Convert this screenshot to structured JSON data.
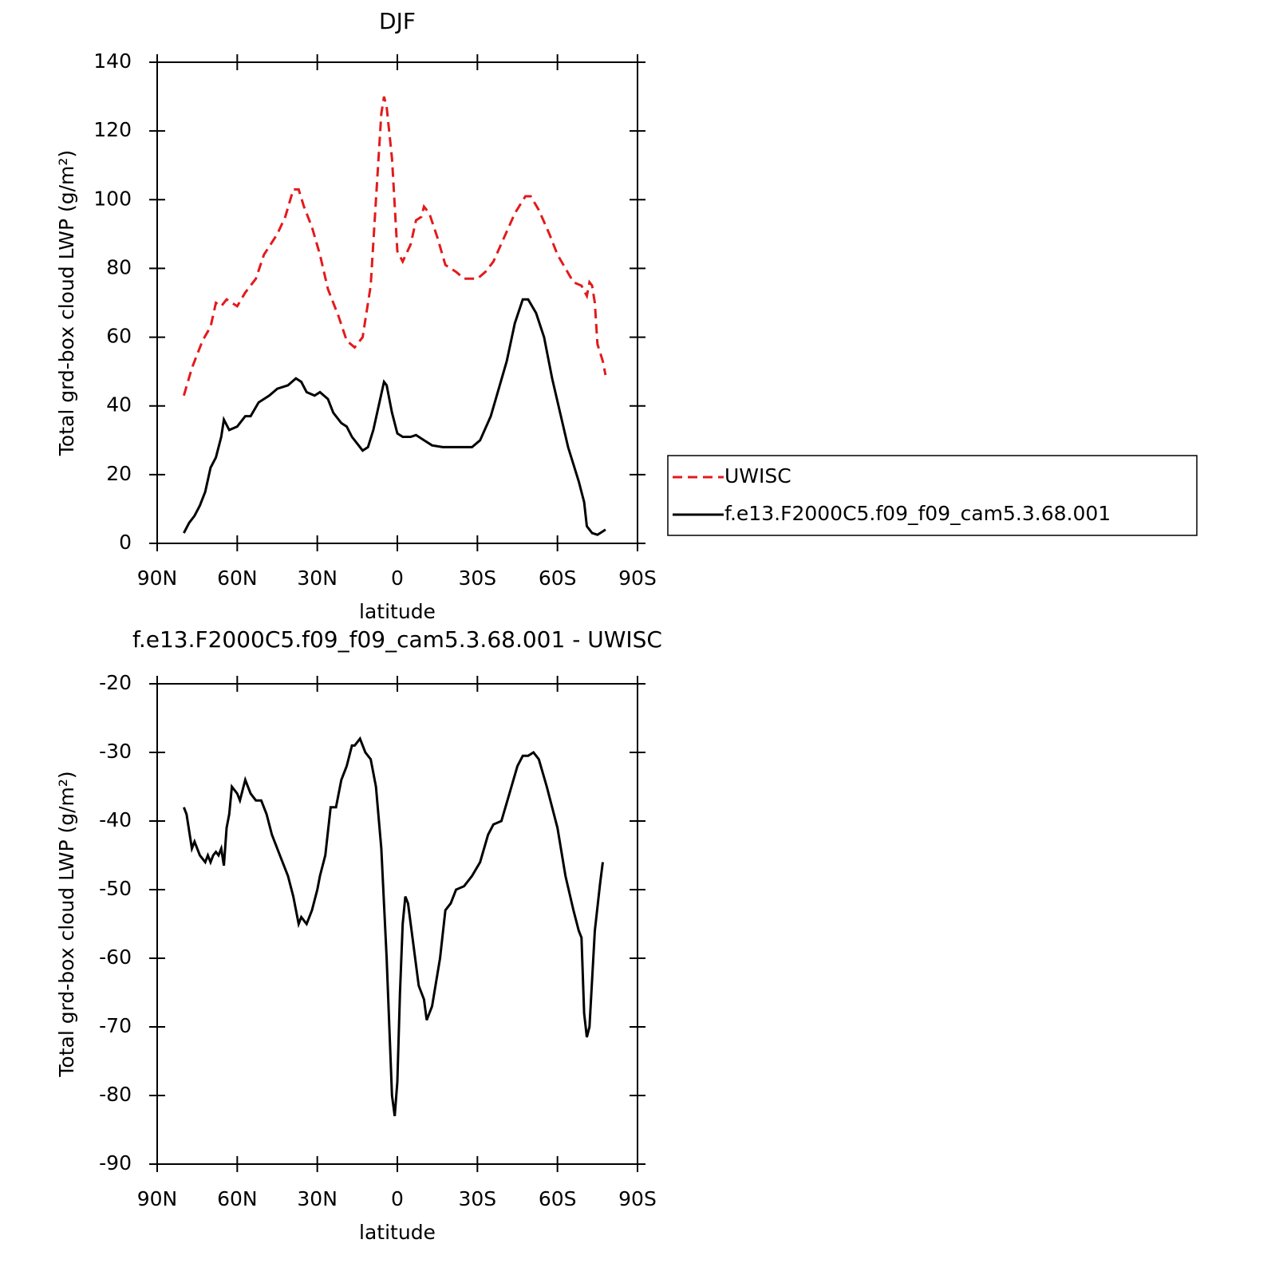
{
  "chart_data": [
    {
      "type": "line",
      "title": "DJF",
      "xlabel": "latitude",
      "ylabel": "Total grd-box cloud LWP (g/m²)",
      "xlim": [
        90,
        -90
      ],
      "xticks": [
        {
          "value": 90,
          "label": "90N"
        },
        {
          "value": 60,
          "label": "60N"
        },
        {
          "value": 30,
          "label": "30N"
        },
        0,
        {
          "value": -30,
          "label": "30S"
        },
        {
          "value": -60,
          "label": "60S"
        },
        {
          "value": -90,
          "label": "90S"
        }
      ],
      "ylim": [
        0,
        140
      ],
      "yticks": [
        0,
        20,
        40,
        60,
        80,
        100,
        120,
        140
      ],
      "legend": "outside right",
      "series": [
        {
          "name": "UWISC",
          "color": "#e31a1c",
          "linestyle": "dashed",
          "x": [
            80,
            77,
            75,
            73,
            70,
            68,
            66,
            64,
            62,
            60,
            57,
            53,
            50,
            45,
            42,
            39,
            37,
            35,
            32,
            29,
            26,
            22,
            19,
            16,
            13,
            10,
            8,
            6,
            5,
            4,
            2,
            0,
            -2,
            -5,
            -7,
            -9,
            -10,
            -12,
            -15,
            -18,
            -22,
            -25,
            -30,
            -33,
            -36,
            -40,
            -44,
            -48,
            -50,
            -53,
            -57,
            -60,
            -63,
            -66,
            -69,
            -71,
            -72,
            -73,
            -74,
            -75,
            -77,
            -78
          ],
          "values": [
            43,
            51,
            55,
            59,
            63,
            70,
            69,
            71,
            70,
            69,
            73,
            77,
            84,
            90,
            95,
            103,
            103,
            98,
            92,
            84,
            74,
            66,
            59,
            57,
            60,
            75,
            100,
            125,
            130,
            127,
            112,
            85,
            82,
            87,
            94,
            95,
            98,
            96,
            89,
            81,
            79,
            77,
            77,
            79,
            82,
            89,
            96,
            101,
            101,
            97,
            90,
            84,
            80,
            76,
            75,
            72,
            76,
            75,
            70,
            58,
            53,
            49
          ]
        },
        {
          "name": "f.e13.F2000C5.f09_f09_cam5.3.68.001",
          "color": "#000000",
          "linestyle": "solid",
          "x": [
            80,
            78,
            76,
            74,
            72,
            70,
            68,
            66,
            65,
            63,
            60,
            57,
            55,
            52,
            48,
            45,
            41,
            38,
            36,
            34,
            31,
            29,
            26,
            24,
            21,
            19,
            17,
            15,
            13,
            11,
            9,
            7,
            5,
            4,
            2,
            0,
            -2,
            -5,
            -7,
            -10,
            -13,
            -17,
            -20,
            -25,
            -28,
            -31,
            -35,
            -38,
            -41,
            -44,
            -47,
            -49,
            -52,
            -55,
            -58,
            -61,
            -64,
            -66,
            -68,
            -70,
            -71,
            -73,
            -75,
            -76,
            -78
          ],
          "values": [
            3,
            6,
            8,
            11,
            15,
            22,
            25,
            31,
            36,
            33,
            34,
            37,
            37,
            41,
            43,
            45,
            46,
            48,
            47,
            44,
            43,
            44,
            42,
            38,
            35,
            34,
            31,
            29,
            27,
            28,
            33,
            40,
            47,
            46,
            38,
            32,
            31,
            31,
            31.5,
            30,
            28.5,
            28,
            28,
            28,
            28,
            30,
            37,
            45,
            53,
            64,
            71,
            71,
            67,
            60,
            48,
            38,
            28,
            23,
            18,
            12,
            5,
            3,
            2.5,
            3,
            4
          ]
        }
      ]
    },
    {
      "type": "line",
      "title": "f.e13.F2000C5.f09_f09_cam5.3.68.001 - UWISC",
      "xlabel": "latitude",
      "ylabel": "Total grd-box cloud LWP (g/m²)",
      "xlim": [
        90,
        -90
      ],
      "xticks": [
        {
          "value": 90,
          "label": "90N"
        },
        {
          "value": 60,
          "label": "60N"
        },
        {
          "value": 30,
          "label": "30N"
        },
        0,
        {
          "value": -30,
          "label": "30S"
        },
        {
          "value": -60,
          "label": "60S"
        },
        {
          "value": -90,
          "label": "90S"
        }
      ],
      "ylim": [
        -90,
        -20
      ],
      "yticks": [
        -90,
        -80,
        -70,
        -60,
        -50,
        -40,
        -30,
        -20
      ],
      "series": [
        {
          "color": "#000000",
          "linestyle": "solid",
          "x": [
            80,
            79,
            77,
            76,
            74,
            72,
            71,
            70,
            69,
            68,
            67,
            66,
            65,
            64,
            63,
            62,
            60,
            59,
            57,
            55,
            53,
            51,
            49,
            47,
            44,
            41,
            39,
            37,
            36,
            34,
            32,
            30,
            29,
            27,
            25,
            23,
            21,
            19,
            17,
            16,
            14,
            12,
            10,
            8,
            6,
            4,
            2,
            1,
            0,
            -1,
            -2,
            -3,
            -4,
            -6,
            -8,
            -10,
            -11,
            -13,
            -16,
            -18,
            -20,
            -22,
            -25,
            -28,
            -31,
            -34,
            -36,
            -39,
            -42,
            -45,
            -47,
            -49,
            -51,
            -53,
            -56,
            -60,
            -63,
            -66,
            -68,
            -69,
            -70,
            -71,
            -72,
            -74,
            -76,
            -77
          ],
          "values": [
            -38,
            -39,
            -44,
            -43,
            -45,
            -46,
            -45,
            -46,
            -45,
            -44.5,
            -45,
            -44,
            -46.5,
            -41,
            -39,
            -35,
            -36,
            -37,
            -34,
            -36,
            -37,
            -37,
            -39,
            -42,
            -45,
            -48,
            -51,
            -55,
            -54,
            -55,
            -53,
            -50,
            -48,
            -45,
            -38,
            -38,
            -34,
            -32,
            -29,
            -29,
            -28,
            -30,
            -31,
            -35,
            -44,
            -60,
            -80,
            -83,
            -78,
            -65,
            -55,
            -51,
            -52,
            -58,
            -64,
            -66,
            -69,
            -67,
            -60,
            -53,
            -52,
            -50,
            -49.5,
            -48,
            -46,
            -42,
            -40.5,
            -40,
            -36,
            -32,
            -30.5,
            -30.5,
            -30,
            -31,
            -35,
            -41,
            -48,
            -53,
            -56,
            -57,
            -68,
            -71.5,
            -70,
            -56,
            -49,
            -46
          ]
        }
      ]
    }
  ]
}
